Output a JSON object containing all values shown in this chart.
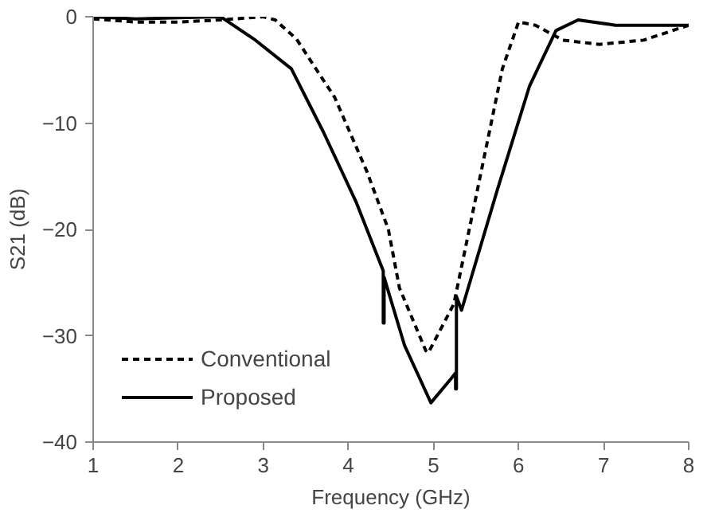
{
  "chart_data": {
    "type": "line",
    "xlabel": "Frequency (GHz)",
    "ylabel": "S21 (dB)",
    "xlim": [
      1,
      8
    ],
    "ylim": [
      -40,
      0
    ],
    "xticks": [
      1,
      2,
      3,
      4,
      5,
      6,
      7,
      8
    ],
    "yticks": [
      -40,
      -30,
      -20,
      -10,
      0
    ],
    "grid": false,
    "legend": "bottom left",
    "marker": "none",
    "series": [
      {
        "name": "Conventional",
        "color": "#000000",
        "line_style": "dashed",
        "x": [
          1,
          1.5,
          2,
          2.5,
          3.0,
          3.14,
          3.39,
          3.84,
          4.22,
          4.47,
          4.6,
          4.91,
          4.94,
          5.24,
          5.56,
          5.81,
          6.0,
          6.2,
          6.52,
          6.95,
          7.47,
          8
        ],
        "values": [
          -0.2,
          -0.5,
          -0.5,
          -0.3,
          0,
          -0.3,
          -2.1,
          -7.6,
          -14.6,
          -20,
          -25.5,
          -31.4,
          -31.6,
          -27,
          -14.6,
          -4.9,
          -0.5,
          -0.8,
          -2.2,
          -2.6,
          -2.2,
          -0.8
        ]
      },
      {
        "name": "Proposed",
        "color": "#000000",
        "line_style": "solid",
        "x": [
          1,
          1.5,
          2,
          2.5,
          2.89,
          3.33,
          3.71,
          4.09,
          4.38,
          4.41,
          4.41,
          4.42,
          4.42,
          4.66,
          4.97,
          5.2,
          5.26,
          5.26,
          5.27,
          5.27,
          5.33,
          5.75,
          6.13,
          6.44,
          6.7,
          7.14,
          8
        ],
        "values": [
          0,
          -0.2,
          -0.1,
          0,
          -2.1,
          -4.9,
          -10.9,
          -17.4,
          -23.3,
          -23.9,
          -28.8,
          -28.8,
          -24.5,
          -30.9,
          -36.3,
          -34.1,
          -33.5,
          -35,
          -35,
          -26.3,
          -27.6,
          -16.3,
          -6.5,
          -1.3,
          -0.3,
          -0.8,
          -0.8
        ]
      }
    ]
  }
}
